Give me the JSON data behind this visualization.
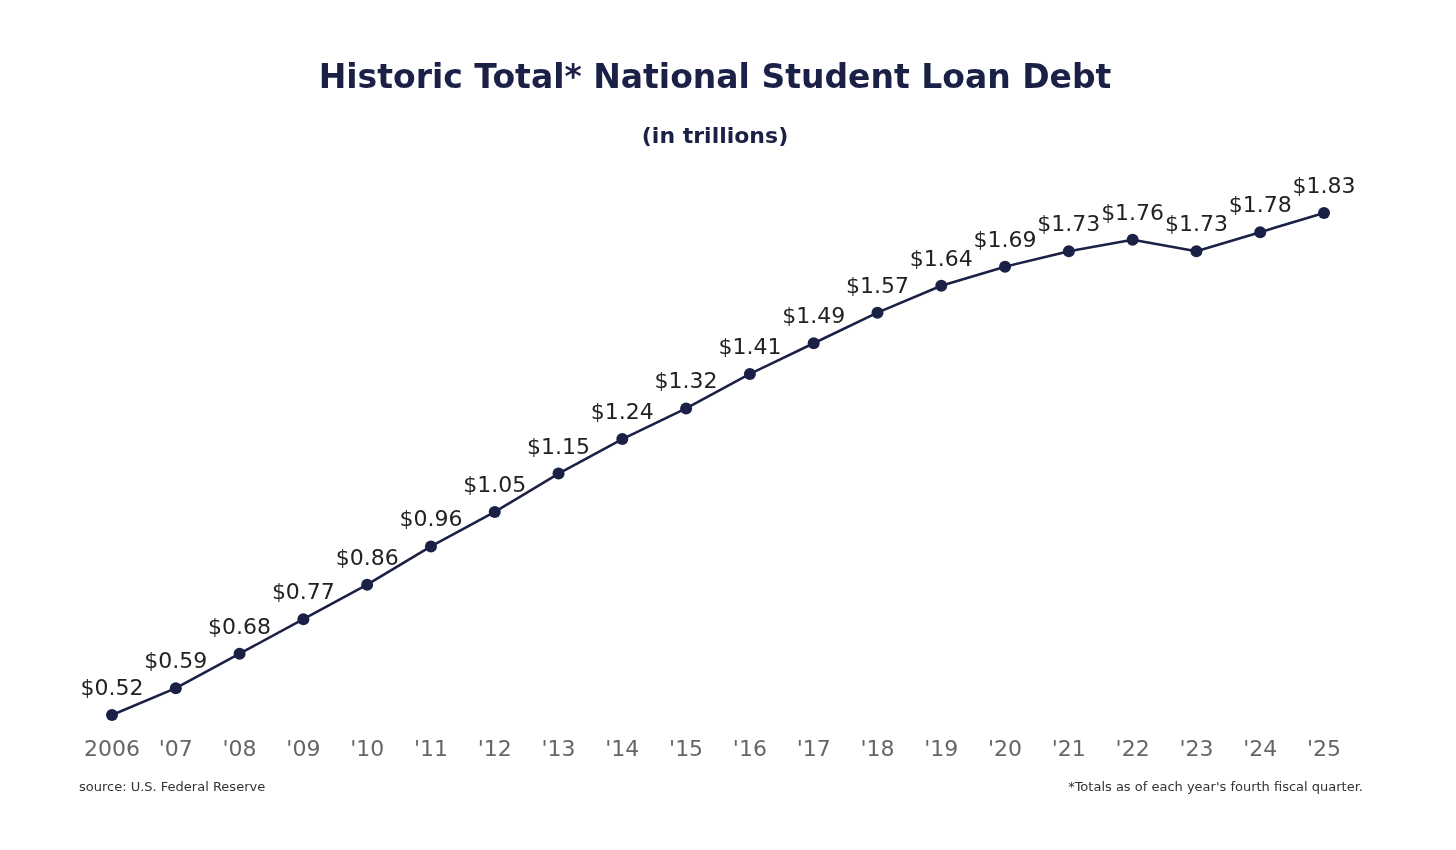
{
  "chart_data": {
    "type": "line",
    "title": "Historic Total* National Student Loan Debt",
    "subtitle": "(in trillions)",
    "categories": [
      "2006",
      "'07",
      "'08",
      "'09",
      "'10",
      "'11",
      "'12",
      "'13",
      "'14",
      "'15",
      "'16",
      "'17",
      "'18",
      "'19",
      "'20",
      "'21",
      "'22",
      "'23",
      "'24",
      "'25"
    ],
    "series": [
      {
        "color": "#1b2146",
        "values": [
          0.52,
          0.59,
          0.68,
          0.77,
          0.86,
          0.96,
          1.05,
          1.15,
          1.24,
          1.32,
          1.41,
          1.49,
          1.57,
          1.64,
          1.69,
          1.73,
          1.76,
          1.73,
          1.78,
          1.83
        ],
        "value_labels": [
          "$0.52",
          "$0.59",
          "$0.68",
          "$0.77",
          "$0.86",
          "$0.96",
          "$1.05",
          "$1.15",
          "$1.24",
          "$1.32",
          "$1.41",
          "$1.49",
          "$1.57",
          "$1.64",
          "$1.69",
          "$1.73",
          "$1.76",
          "$1.73",
          "$1.78",
          "$1.83"
        ]
      }
    ],
    "marker": "circle",
    "line_style": "solid",
    "annotations": [
      "source: U.S. Federal Reserve",
      "*Totals as of each year's fourth fiscal quarter."
    ]
  }
}
